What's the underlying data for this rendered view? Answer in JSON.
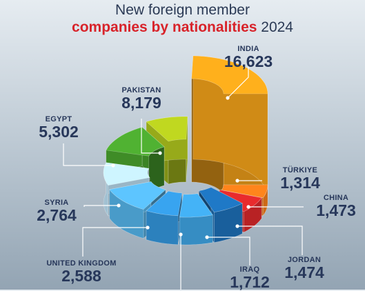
{
  "title": {
    "line1": "New foreign member",
    "line2_accent": "companies by nationalities",
    "line2_year": "2024"
  },
  "chart_data": {
    "type": "pie",
    "variant": "3d-donut-exploded",
    "title": "New foreign member companies by nationalities 2024",
    "categories": [
      "INDIA",
      "TÜRKIYE",
      "CHINA",
      "JORDAN",
      "IRAQ",
      "",
      "UNITED KINGDOM",
      "SYRIA",
      "EGYPT",
      "PAKISTAN"
    ],
    "values": [
      16623,
      1314,
      1473,
      1474,
      1712,
      null,
      2588,
      2764,
      5302,
      8179
    ],
    "labels": [
      "16,623",
      "1,314",
      "1,473",
      "1,474",
      "1,712",
      "",
      "2,588",
      "2,764",
      "5,302",
      "8,179"
    ],
    "colors": [
      "#f5a31a",
      "#f07b1a",
      "#d8282a",
      "#1d70b8",
      "#3fa6e5",
      "#3498de",
      "#56b6ec",
      "#bfe3f7",
      "#4aa52e",
      "#b2c81e"
    ]
  }
}
